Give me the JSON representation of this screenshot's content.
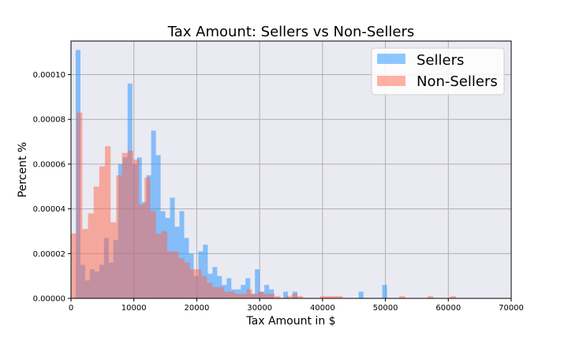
{
  "chart_data": {
    "type": "bar",
    "title": "Tax Amount: Sellers vs Non-Sellers",
    "xlabel": "Tax Amount in $",
    "ylabel": "Percent %",
    "xlim": [
      0,
      70000
    ],
    "ylim": [
      0,
      0.000115
    ],
    "xticks": [
      "0",
      "10000",
      "20000",
      "30000",
      "40000",
      "50000",
      "60000",
      "70000"
    ],
    "xtick_values": [
      0,
      10000,
      20000,
      30000,
      40000,
      50000,
      60000,
      70000
    ],
    "yticks": [
      "0.00000",
      "0.00002",
      "0.00004",
      "0.00006",
      "0.00008",
      "0.00010"
    ],
    "ytick_values": [
      0,
      2e-05,
      4e-05,
      6e-05,
      8e-05,
      0.0001
    ],
    "grid": true,
    "legend_position": "upper right",
    "series": [
      {
        "name": "Sellers",
        "color": "#1e90ff",
        "opacity": 0.5,
        "bin_width": 750,
        "bins": [
          [
            0,
            0.0
          ],
          [
            750,
            0.000111
          ],
          [
            1500,
            1.5e-05
          ],
          [
            2250,
            8e-06
          ],
          [
            3000,
            1.3e-05
          ],
          [
            3750,
            1.2e-05
          ],
          [
            4500,
            1.5e-05
          ],
          [
            5250,
            2.7e-05
          ],
          [
            6000,
            1.6e-05
          ],
          [
            6750,
            2.6e-05
          ],
          [
            7500,
            6e-05
          ],
          [
            8250,
            6.3e-05
          ],
          [
            9000,
            9.6e-05
          ],
          [
            9750,
            6e-05
          ],
          [
            10500,
            6.3e-05
          ],
          [
            11250,
            4.3e-05
          ],
          [
            12000,
            5.5e-05
          ],
          [
            12750,
            7.5e-05
          ],
          [
            13500,
            6.4e-05
          ],
          [
            14250,
            3.9e-05
          ],
          [
            15000,
            3.6e-05
          ],
          [
            15750,
            4.5e-05
          ],
          [
            16500,
            3.2e-05
          ],
          [
            17250,
            3.9e-05
          ],
          [
            18000,
            2.7e-05
          ],
          [
            18750,
            2e-05
          ],
          [
            19500,
            1e-05
          ],
          [
            20250,
            2.1e-05
          ],
          [
            21000,
            2.4e-05
          ],
          [
            21750,
            1.1e-05
          ],
          [
            22500,
            1.4e-05
          ],
          [
            23250,
            1e-05
          ],
          [
            24000,
            6e-06
          ],
          [
            24750,
            9e-06
          ],
          [
            25500,
            4e-06
          ],
          [
            26250,
            4e-06
          ],
          [
            27000,
            6e-06
          ],
          [
            27750,
            9e-06
          ],
          [
            28500,
            2e-06
          ],
          [
            29250,
            1.3e-05
          ],
          [
            30000,
            3e-06
          ],
          [
            30750,
            6e-06
          ],
          [
            31500,
            4e-06
          ],
          [
            33750,
            3e-06
          ],
          [
            35250,
            3e-06
          ],
          [
            45750,
            3e-06
          ],
          [
            49500,
            6e-06
          ]
        ]
      },
      {
        "name": "Non-Sellers",
        "color": "#ff6347",
        "opacity": 0.5,
        "bin_width": 900,
        "bins": [
          [
            0,
            2.9e-05
          ],
          [
            900,
            8.3e-05
          ],
          [
            1800,
            3.1e-05
          ],
          [
            2700,
            3.8e-05
          ],
          [
            3600,
            5e-05
          ],
          [
            4500,
            5.9e-05
          ],
          [
            5400,
            6.8e-05
          ],
          [
            6300,
            3.4e-05
          ],
          [
            7200,
            5.5e-05
          ],
          [
            8100,
            6.5e-05
          ],
          [
            9000,
            6.6e-05
          ],
          [
            9900,
            6.2e-05
          ],
          [
            10800,
            4.2e-05
          ],
          [
            11700,
            5.4e-05
          ],
          [
            12600,
            3.9e-05
          ],
          [
            13500,
            2.9e-05
          ],
          [
            14400,
            3e-05
          ],
          [
            15300,
            2.1e-05
          ],
          [
            16200,
            2.1e-05
          ],
          [
            17100,
            1.8e-05
          ],
          [
            18000,
            1.6e-05
          ],
          [
            18900,
            1.3e-05
          ],
          [
            19800,
            1.3e-05
          ],
          [
            20700,
            1e-05
          ],
          [
            21600,
            7e-06
          ],
          [
            22500,
            5e-06
          ],
          [
            23400,
            5e-06
          ],
          [
            24300,
            3e-06
          ],
          [
            25200,
            3e-06
          ],
          [
            26100,
            2e-06
          ],
          [
            27000,
            2e-06
          ],
          [
            27900,
            4e-06
          ],
          [
            28800,
            2e-06
          ],
          [
            29700,
            3e-06
          ],
          [
            30600,
            2e-06
          ],
          [
            31500,
            2e-06
          ],
          [
            32400,
            1e-06
          ],
          [
            34200,
            1e-06
          ],
          [
            35100,
            2e-06
          ],
          [
            36000,
            1e-06
          ],
          [
            39600,
            1e-06
          ],
          [
            40500,
            1e-06
          ],
          [
            41400,
            1e-06
          ],
          [
            42300,
            1e-06
          ],
          [
            52200,
            1e-06
          ],
          [
            56700,
            1e-06
          ],
          [
            60300,
            1e-06
          ]
        ]
      }
    ]
  }
}
